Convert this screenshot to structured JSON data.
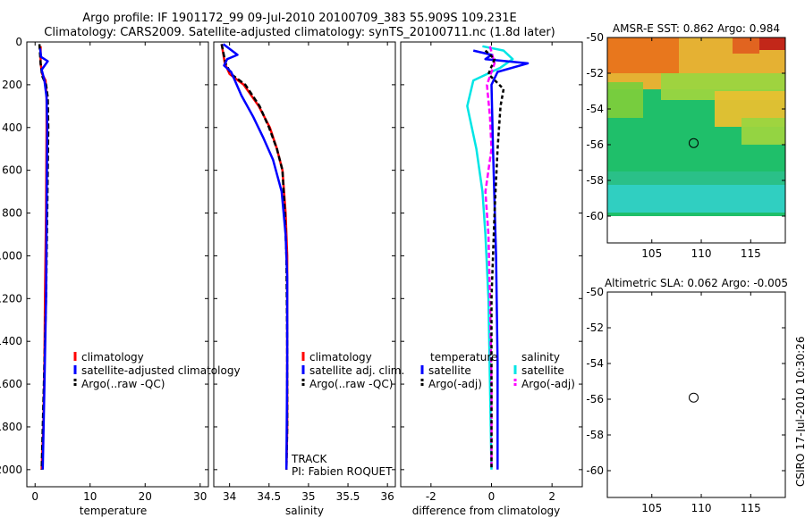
{
  "header": {
    "title_line1": "Argo profile: IF 1901172_99 09-Jul-2010 20100709_383 55.909S 109.231E",
    "title_line2": "Climatology: CARS2009. Satellite-adjusted climatology: synTS_20100711.nc (1.8d later)"
  },
  "side_label": "CSIRO 17-Jul-2010 10:30:26",
  "colors": {
    "climatology": "#ff0000",
    "satellite": "#0000ff",
    "argo": "#000000",
    "satellite_salinity": "#00e5e5",
    "argo_salinity": "#ff00ff"
  },
  "chart_data": [
    {
      "type": "line",
      "name": "temperature",
      "xlabel": "temperature",
      "ylabel": "",
      "xlim": [
        -1.5,
        31.5
      ],
      "ylim": [
        0,
        2080
      ],
      "xticks": [
        "0",
        "10",
        "20",
        "30"
      ],
      "yticks": [
        "0",
        "200",
        "400",
        "600",
        "800",
        "1000",
        "1200",
        "1400",
        "1600",
        "1800",
        "2000"
      ],
      "legend": [
        "climatology",
        "satellite-adjusted climatology",
        "Argo(..raw -QC)"
      ],
      "series": [
        {
          "name": "climatology",
          "x": [
            1.0,
            1.0,
            1.3,
            1.9,
            2.1,
            2.1,
            2.0,
            1.8,
            1.7,
            1.5,
            1.2
          ],
          "y": [
            20,
            100,
            150,
            180,
            260,
            400,
            800,
            1200,
            1500,
            1800,
            2000
          ]
        },
        {
          "name": "satellite-adjusted climatology",
          "x": [
            0.9,
            1.1,
            2.3,
            1.2,
            1.7,
            2.1,
            2.2,
            2.1,
            2.0,
            1.7,
            1.4
          ],
          "y": [
            30,
            70,
            90,
            130,
            180,
            260,
            400,
            800,
            1200,
            1600,
            2000
          ]
        },
        {
          "name": "Argo(..raw -QC)",
          "x": [
            0.8,
            1.0,
            1.3,
            2.0,
            2.3,
            2.4,
            2.2,
            2.0,
            1.7,
            1.4,
            1.2
          ],
          "y": [
            10,
            100,
            160,
            200,
            260,
            400,
            800,
            1200,
            1500,
            1800,
            2000
          ]
        }
      ]
    },
    {
      "type": "line",
      "name": "salinity",
      "xlabel": "salinity",
      "ylabel": "",
      "xlim": [
        33.8,
        36.1
      ],
      "ylim": [
        0,
        2080
      ],
      "xticks": [
        "34",
        "34.5",
        "35",
        "35.5",
        "36"
      ],
      "legend": [
        "climatology",
        "satellite adj. clim.",
        "Argo(..raw -QC)"
      ],
      "annotations": [
        "TRACK",
        "PI: Fabien ROQUET"
      ],
      "series": [
        {
          "name": "climatology",
          "x": [
            33.9,
            33.94,
            34.0,
            34.18,
            34.37,
            34.51,
            34.6,
            34.67,
            34.71,
            34.73,
            34.73,
            34.73,
            34.72
          ],
          "y": [
            10,
            100,
            150,
            200,
            300,
            400,
            500,
            600,
            800,
            1000,
            1400,
            1800,
            2000
          ]
        },
        {
          "name": "satellite adj. clim.",
          "x": [
            33.92,
            34.1,
            33.97,
            33.93,
            34.02,
            34.15,
            34.3,
            34.43,
            34.55,
            34.66,
            34.71,
            34.73,
            34.73,
            34.72
          ],
          "y": [
            10,
            60,
            80,
            110,
            140,
            250,
            350,
            450,
            550,
            700,
            900,
            1100,
            1500,
            2000
          ]
        },
        {
          "name": "Argo(..raw -QC)",
          "x": [
            33.9,
            33.95,
            34.02,
            34.2,
            34.38,
            34.5,
            34.6,
            34.67,
            34.7,
            34.72,
            34.73,
            34.73,
            34.72
          ],
          "y": [
            10,
            100,
            150,
            200,
            300,
            400,
            500,
            600,
            800,
            1000,
            1400,
            1800,
            2000
          ]
        }
      ]
    },
    {
      "type": "line",
      "name": "difference",
      "xlabel": "difference from climatology",
      "ylabel": "",
      "xlim": [
        -3.0,
        3.0
      ],
      "ylim": [
        0,
        2080
      ],
      "xticks": [
        "-2",
        "0",
        "2"
      ],
      "legend_groups": [
        "temperature",
        "salinity"
      ],
      "legend": [
        "satellite",
        "Argo(-adj)",
        "satellite",
        "Argo(-adj)"
      ],
      "series": [
        {
          "name": "temperature satellite",
          "x": [
            -0.6,
            0.0,
            -0.2,
            1.2,
            0.2,
            0.0,
            0.05,
            0.15,
            0.2,
            0.2
          ],
          "y": [
            40,
            60,
            80,
            100,
            140,
            200,
            500,
            1000,
            1500,
            2000
          ]
        },
        {
          "name": "temperature Argo(-adj)",
          "x": [
            -0.2,
            0.1,
            -0.1,
            0.4,
            0.3,
            0.2,
            0.1,
            0.0,
            0.0
          ],
          "y": [
            40,
            80,
            150,
            220,
            300,
            500,
            800,
            1200,
            2000
          ]
        },
        {
          "name": "salinity satellite",
          "x": [
            -0.3,
            0.4,
            0.7,
            0.3,
            -0.6,
            -0.8,
            -0.5,
            -0.3,
            -0.2,
            -0.1,
            -0.05,
            0.0
          ],
          "y": [
            20,
            40,
            80,
            120,
            180,
            300,
            500,
            700,
            900,
            1200,
            1600,
            2000
          ]
        },
        {
          "name": "salinity Argo(-adj)",
          "x": [
            -0.05,
            0.1,
            -0.15,
            -0.05,
            0.0,
            -0.2,
            -0.1,
            -0.05,
            0.0,
            0.0
          ],
          "y": [
            20,
            100,
            200,
            350,
            500,
            700,
            900,
            1200,
            1600,
            2000
          ]
        }
      ]
    },
    {
      "type": "heatmap",
      "name": "sst_map",
      "title": "AMSR-E SST: 0.862 Argo: 0.984",
      "xlim": [
        100.5,
        118.5
      ],
      "ylim": [
        -61.5,
        -50
      ],
      "xticks": [
        "105",
        "110",
        "115"
      ],
      "yticks": [
        "-50",
        "-52",
        "-54",
        "-56",
        "-58",
        "-60"
      ],
      "data_extent_lat": [
        -60,
        -50
      ],
      "marker": {
        "lon": 109.23,
        "lat": -55.91
      }
    },
    {
      "type": "heatmap",
      "name": "sla_map",
      "title": "Altimetric SLA: 0.062 Argo: -0.005",
      "xlim": [
        100.5,
        118.5
      ],
      "ylim": [
        -61.5,
        -50
      ],
      "xticks": [
        "105",
        "110",
        "115"
      ],
      "yticks": [
        "-50",
        "-52",
        "-54",
        "-56",
        "-58",
        "-60"
      ],
      "data_extent_lat": [
        -60,
        -50
      ],
      "marker": {
        "lon": 109.23,
        "lat": -55.91
      }
    }
  ]
}
